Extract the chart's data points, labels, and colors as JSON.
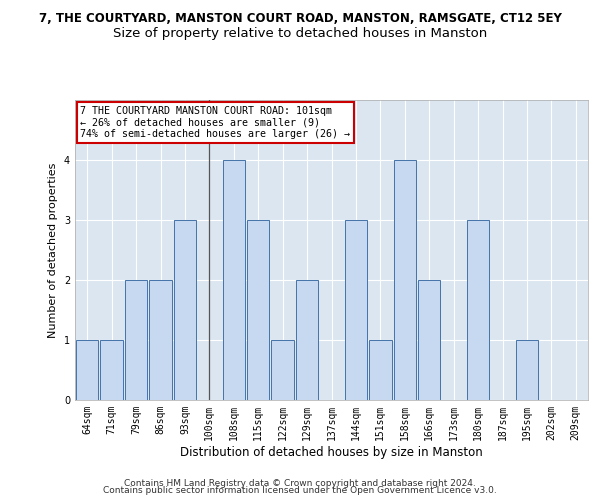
{
  "title_line1": "7, THE COURTYARD, MANSTON COURT ROAD, MANSTON, RAMSGATE, CT12 5EY",
  "title_line2": "Size of property relative to detached houses in Manston",
  "xlabel": "Distribution of detached houses by size in Manston",
  "ylabel": "Number of detached properties",
  "categories": [
    "64sqm",
    "71sqm",
    "79sqm",
    "86sqm",
    "93sqm",
    "100sqm",
    "108sqm",
    "115sqm",
    "122sqm",
    "129sqm",
    "137sqm",
    "144sqm",
    "151sqm",
    "158sqm",
    "166sqm",
    "173sqm",
    "180sqm",
    "187sqm",
    "195sqm",
    "202sqm",
    "209sqm"
  ],
  "values": [
    1,
    1,
    2,
    2,
    3,
    0,
    4,
    3,
    1,
    2,
    0,
    3,
    1,
    4,
    2,
    0,
    3,
    0,
    1,
    0,
    0
  ],
  "highlight_index": 5,
  "bar_color": "#c6d9f0",
  "bar_edge_color": "#4472a8",
  "background_color": "#dce6f1",
  "annotation_text": "7 THE COURTYARD MANSTON COURT ROAD: 101sqm\n← 26% of detached houses are smaller (9)\n74% of semi-detached houses are larger (26) →",
  "annotation_box_facecolor": "#ffffff",
  "annotation_box_edgecolor": "#cc0000",
  "ylim": [
    0,
    5
  ],
  "yticks": [
    0,
    1,
    2,
    3,
    4
  ],
  "footnote_line1": "Contains HM Land Registry data © Crown copyright and database right 2024.",
  "footnote_line2": "Contains public sector information licensed under the Open Government Licence v3.0.",
  "title1_fontsize": 8.5,
  "title2_fontsize": 9.5,
  "xlabel_fontsize": 8.5,
  "ylabel_fontsize": 8,
  "tick_fontsize": 7,
  "footnote_fontsize": 6.5,
  "annotation_fontsize": 7.2,
  "highlight_line_color": "#555555"
}
